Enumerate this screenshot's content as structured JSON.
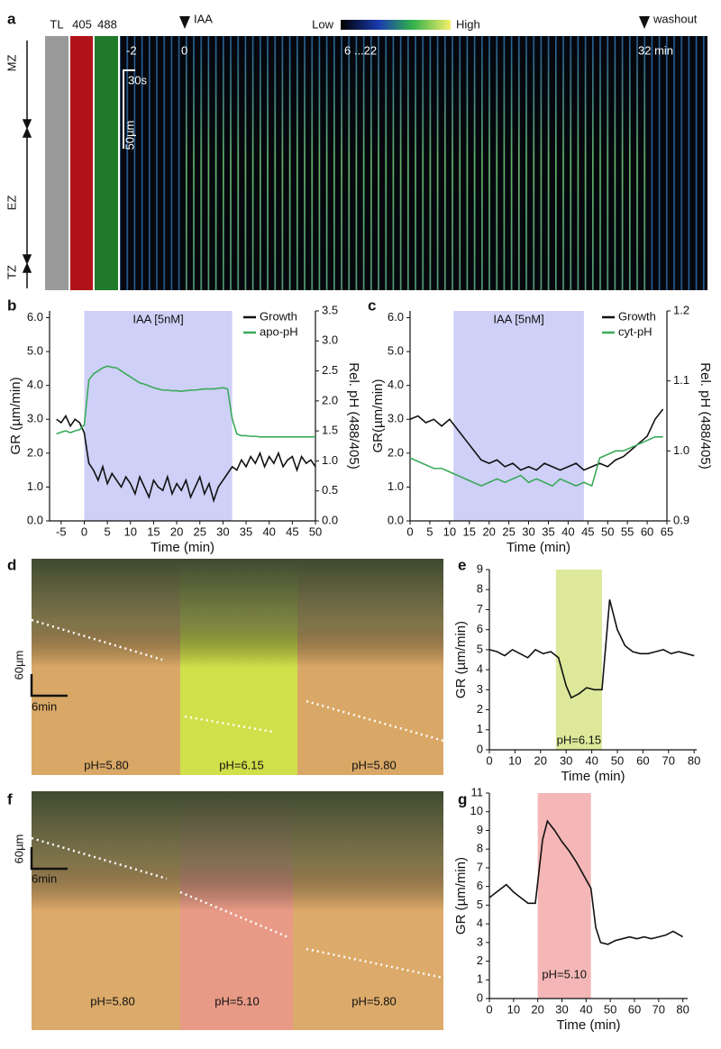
{
  "panel_labels": [
    "a",
    "b",
    "c",
    "d",
    "e",
    "f",
    "g"
  ],
  "image_a": {
    "columns": [
      "TL",
      "405",
      "488"
    ],
    "markers": [
      "IAA",
      "washout"
    ],
    "colorbar": [
      "Low",
      "High"
    ],
    "time_labels": [
      "-2",
      "0",
      "6 ...22",
      "32 min"
    ],
    "scale_bars": [
      "30s",
      "50µm"
    ],
    "zones": [
      "MZ",
      "EZ",
      "TZ"
    ]
  },
  "image_d": {
    "scale_bars": [
      "60µm",
      "6min"
    ],
    "segments": [
      "pH=5.80",
      "pH=6.15",
      "pH=5.80"
    ]
  },
  "image_f": {
    "scale_bars": [
      "60µm",
      "6min"
    ],
    "segments": [
      "pH=5.80",
      "pH=5.10",
      "pH=5.80"
    ]
  },
  "chart_data": [
    {
      "type": "line",
      "ylabel": "GR (µm/min)",
      "y2label": "Rel. pH (488/405)",
      "xlabel": "Time (min)",
      "shade": {
        "from": 0,
        "to": 32,
        "label": "IAA [5nM]",
        "color": "#cfd0f7"
      },
      "x": [
        -6,
        -5,
        -4,
        -3,
        -2,
        -1,
        0,
        1,
        2,
        3,
        4,
        5,
        6,
        7,
        8,
        9,
        10,
        11,
        12,
        13,
        14,
        15,
        16,
        17,
        18,
        19,
        20,
        21,
        22,
        23,
        24,
        25,
        26,
        27,
        28,
        29,
        30,
        31,
        32,
        33,
        34,
        35,
        36,
        37,
        38,
        39,
        40,
        41,
        42,
        43,
        44,
        45,
        46,
        47,
        48,
        49,
        50
      ],
      "series": [
        {
          "name": "Growth",
          "color": "#111111",
          "values": [
            3.0,
            2.9,
            3.1,
            2.8,
            3.0,
            2.9,
            2.6,
            1.7,
            1.5,
            1.2,
            1.6,
            1.1,
            1.4,
            1.2,
            1.0,
            1.3,
            1.1,
            0.8,
            1.3,
            1.0,
            0.7,
            1.2,
            1.0,
            0.9,
            1.3,
            0.8,
            1.1,
            0.9,
            1.2,
            0.7,
            1.0,
            1.3,
            0.8,
            1.1,
            0.6,
            1.0,
            1.2,
            1.4,
            1.6,
            1.5,
            1.8,
            1.6,
            1.9,
            1.7,
            2.0,
            1.6,
            1.9,
            1.7,
            2.0,
            1.6,
            1.8,
            1.9,
            1.5,
            1.9,
            1.7,
            1.8,
            1.6
          ]
        },
        {
          "name": "apo-pH",
          "color": "#3aaa5a",
          "axis": "y2",
          "values": [
            1.45,
            1.48,
            1.5,
            1.47,
            1.5,
            1.52,
            1.6,
            2.35,
            2.45,
            2.5,
            2.55,
            2.58,
            2.56,
            2.55,
            2.5,
            2.45,
            2.4,
            2.35,
            2.3,
            2.28,
            2.25,
            2.22,
            2.2,
            2.18,
            2.18,
            2.17,
            2.17,
            2.16,
            2.17,
            2.18,
            2.18,
            2.19,
            2.2,
            2.2,
            2.2,
            2.21,
            2.22,
            2.2,
            1.7,
            1.45,
            1.42,
            1.42,
            1.41,
            1.41,
            1.4,
            1.4,
            1.4,
            1.4,
            1.4,
            1.4,
            1.4,
            1.4,
            1.4,
            1.4,
            1.4,
            1.4,
            1.4
          ]
        }
      ],
      "xlim": [
        -7.5,
        50
      ],
      "xticks": [
        -5,
        0,
        5,
        10,
        15,
        20,
        25,
        30,
        35,
        40,
        45,
        50
      ],
      "ylim": [
        0,
        6.2
      ],
      "yticks": [
        {
          "value": 0,
          "label": "0.0"
        },
        {
          "value": 1,
          "label": "1.0"
        },
        {
          "value": 2,
          "label": "2.0"
        },
        {
          "value": 3,
          "label": "3.0"
        },
        {
          "value": 4,
          "label": "4.0"
        },
        {
          "value": 5,
          "label": "5.0"
        },
        {
          "value": 6,
          "label": "6.0"
        }
      ],
      "y2lim": [
        0,
        3.5
      ],
      "y2ticks": [
        {
          "value": 0,
          "label": "0.0"
        },
        0.5,
        {
          "value": 1,
          "label": "1.0"
        },
        1.5,
        {
          "value": 2,
          "label": "2.0"
        },
        2.5,
        {
          "value": 3,
          "label": "3.0"
        },
        3.5
      ]
    },
    {
      "type": "line",
      "ylabel": "GR(µm/min)",
      "y2label": "Rel. pH (488/405)",
      "xlabel": "Time (min)",
      "shade": {
        "from": 11,
        "to": 44,
        "label": "IAA [5nM]",
        "color": "#cfd0f7"
      },
      "x": [
        0,
        2,
        4,
        6,
        8,
        10,
        12,
        14,
        16,
        18,
        20,
        22,
        24,
        26,
        28,
        30,
        32,
        34,
        36,
        38,
        40,
        42,
        44,
        46,
        48,
        50,
        52,
        54,
        56,
        58,
        60,
        62,
        64
      ],
      "series": [
        {
          "name": "Growth",
          "color": "#111111",
          "values": [
            3.0,
            3.1,
            2.9,
            3.0,
            2.8,
            3.0,
            2.7,
            2.4,
            2.1,
            1.8,
            1.7,
            1.8,
            1.6,
            1.7,
            1.5,
            1.6,
            1.5,
            1.7,
            1.6,
            1.5,
            1.6,
            1.7,
            1.5,
            1.6,
            1.7,
            1.6,
            1.8,
            1.9,
            2.1,
            2.3,
            2.5,
            3.0,
            3.3
          ]
        },
        {
          "name": "cyt-pH",
          "color": "#3aaa5a",
          "axis": "y2",
          "values": [
            0.99,
            0.985,
            0.98,
            0.975,
            0.975,
            0.97,
            0.965,
            0.96,
            0.955,
            0.95,
            0.955,
            0.96,
            0.955,
            0.96,
            0.965,
            0.955,
            0.96,
            0.955,
            0.95,
            0.96,
            0.955,
            0.95,
            0.955,
            0.95,
            0.99,
            0.995,
            1.0,
            1.0,
            1.005,
            1.01,
            1.015,
            1.02,
            1.02
          ]
        }
      ],
      "xlim": [
        0,
        65
      ],
      "xticks": [
        0,
        5,
        10,
        15,
        20,
        25,
        30,
        35,
        40,
        45,
        50,
        55,
        60,
        65
      ],
      "ylim": [
        0,
        6.2
      ],
      "yticks": [
        {
          "value": 0,
          "label": "0.0"
        },
        {
          "value": 1,
          "label": "1.0"
        },
        {
          "value": 2,
          "label": "2.0"
        },
        {
          "value": 3,
          "label": "3.0"
        },
        {
          "value": 4,
          "label": "4.0"
        },
        {
          "value": 5,
          "label": "5.0"
        },
        {
          "value": 6,
          "label": "6.0"
        }
      ],
      "y2lim": [
        0.9,
        1.2
      ],
      "y2ticks": [
        0.9,
        {
          "value": 1,
          "label": "1.0"
        },
        1.1,
        1.2
      ]
    },
    {
      "type": "line",
      "ylabel": "GR (µm/min)",
      "xlabel": "Time (min)",
      "shade": {
        "from": 26,
        "to": 44,
        "label": "pH=6.15",
        "color": "#dde89a"
      },
      "x": [
        0,
        3,
        6,
        9,
        12,
        15,
        18,
        21,
        24,
        27,
        30,
        32,
        35,
        38,
        41,
        44,
        47,
        50,
        53,
        56,
        59,
        62,
        65,
        68,
        71,
        74,
        77,
        80
      ],
      "series": [
        {
          "color": "#111111",
          "values": [
            5.0,
            4.9,
            4.7,
            5.0,
            4.8,
            4.6,
            5.0,
            4.8,
            4.9,
            4.6,
            3.2,
            2.6,
            2.8,
            3.1,
            3.0,
            3.0,
            7.5,
            6.0,
            5.2,
            4.9,
            4.8,
            4.8,
            4.9,
            5.0,
            4.8,
            4.9,
            4.8,
            4.7
          ]
        }
      ],
      "xlim": [
        0,
        81
      ],
      "xticks": [
        0,
        10,
        20,
        30,
        40,
        50,
        60,
        70,
        80
      ],
      "ylim": [
        0,
        9
      ],
      "yticks": [
        0,
        1,
        2,
        3,
        4,
        5,
        6,
        7,
        8,
        9
      ]
    },
    {
      "type": "line",
      "ylabel": "GR (µm/min)",
      "xlabel": "Time (min)",
      "shade": {
        "from": 20,
        "to": 42,
        "label": "pH=5.10",
        "color": "#f4b6b6"
      },
      "x": [
        0,
        4,
        7,
        10,
        13,
        16,
        19,
        22,
        24,
        27,
        30,
        33,
        36,
        39,
        42,
        44,
        46,
        49,
        52,
        55,
        58,
        61,
        64,
        67,
        70,
        73,
        76,
        80
      ],
      "series": [
        {
          "color": "#111111",
          "values": [
            5.4,
            5.8,
            6.1,
            5.7,
            5.4,
            5.1,
            5.1,
            8.5,
            9.5,
            9.0,
            8.4,
            7.9,
            7.3,
            6.6,
            5.9,
            3.8,
            3.0,
            2.9,
            3.1,
            3.2,
            3.3,
            3.2,
            3.3,
            3.2,
            3.3,
            3.4,
            3.6,
            3.3
          ]
        }
      ],
      "xlim": [
        0,
        82
      ],
      "xticks": [
        0,
        10,
        20,
        30,
        40,
        50,
        60,
        70,
        80
      ],
      "ylim": [
        0,
        11
      ],
      "yticks": [
        0,
        1,
        2,
        3,
        4,
        5,
        6,
        7,
        8,
        9,
        10,
        11
      ]
    }
  ]
}
